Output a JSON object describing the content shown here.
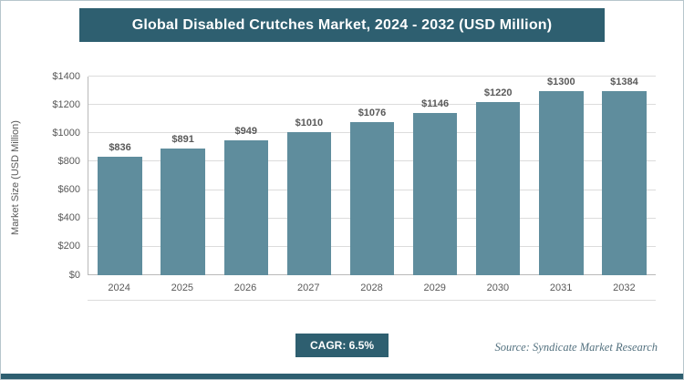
{
  "title": "Global Disabled Crutches Market, 2024 - 2032 (USD Million)",
  "chart_data": {
    "type": "bar",
    "title": "Global Disabled Crutches Market, 2024 - 2032 (USD Million)",
    "categories": [
      "2024",
      "2025",
      "2026",
      "2027",
      "2028",
      "2029",
      "2030",
      "2031",
      "2032"
    ],
    "values": [
      836,
      891,
      949,
      1010,
      1076,
      1146,
      1220,
      1300,
      1384
    ],
    "xlabel": "",
    "ylabel": "Market Size (USD Million)",
    "ylim": [
      0,
      1400
    ],
    "ytick_step": 200,
    "value_prefix": "$",
    "grid": true,
    "legend": false
  },
  "footer": {
    "cagr_label": "CAGR: 6.5%",
    "source": "Source: Syndicate Market Research"
  },
  "colors": {
    "accent": "#2E5F70",
    "bar": "#5F8D9D",
    "grid": "#DCDCDC"
  }
}
